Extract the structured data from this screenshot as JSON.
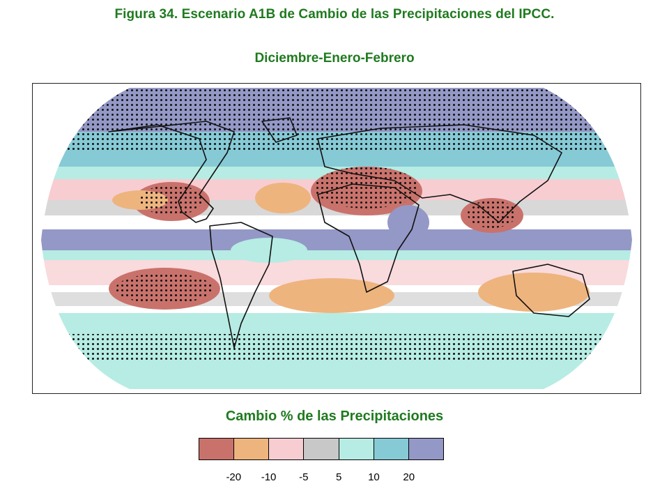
{
  "figure": {
    "title": "Figura 34. Escenario A1B de Cambio de las Precipitaciones del IPCC.",
    "season": "Diciembre-Enero-Febrero"
  },
  "map": {
    "projection": "Robinson",
    "variable": "Cambio % de las Precipitaciones",
    "stippling": "regions where models agree on sign of change",
    "regions": [
      {
        "name": "arctic-north",
        "category": 20,
        "stippled": true
      },
      {
        "name": "northern-eurasia",
        "category": 20,
        "stippled": true
      },
      {
        "name": "north-america-north",
        "category": 10,
        "stippled": true
      },
      {
        "name": "north-atlantic-subtropics",
        "category": -10
      },
      {
        "name": "mexico-caribbean",
        "category": -20,
        "stippled": true
      },
      {
        "name": "sahara-middle-east",
        "category": -20,
        "stippled": true
      },
      {
        "name": "southeast-asia",
        "category": -20,
        "stippled": true
      },
      {
        "name": "equatorial-pacific",
        "category": 20
      },
      {
        "name": "east-africa",
        "category": 20
      },
      {
        "name": "south-atlantic",
        "category": -10
      },
      {
        "name": "southeast-pacific",
        "category": -20,
        "stippled": true
      },
      {
        "name": "australia",
        "category": -10
      },
      {
        "name": "southern-ocean",
        "category": 10,
        "stippled": true
      }
    ]
  },
  "legend": {
    "title": "Cambio % de las Precipitaciones",
    "colors": [
      "#c9726b",
      "#eeb47e",
      "#f7cdd2",
      "#c8c8c8",
      "#b6ece3",
      "#86cad6",
      "#9498c6"
    ],
    "ticks": [
      "-20",
      "-10",
      "-5",
      "5",
      "10",
      "20"
    ]
  }
}
